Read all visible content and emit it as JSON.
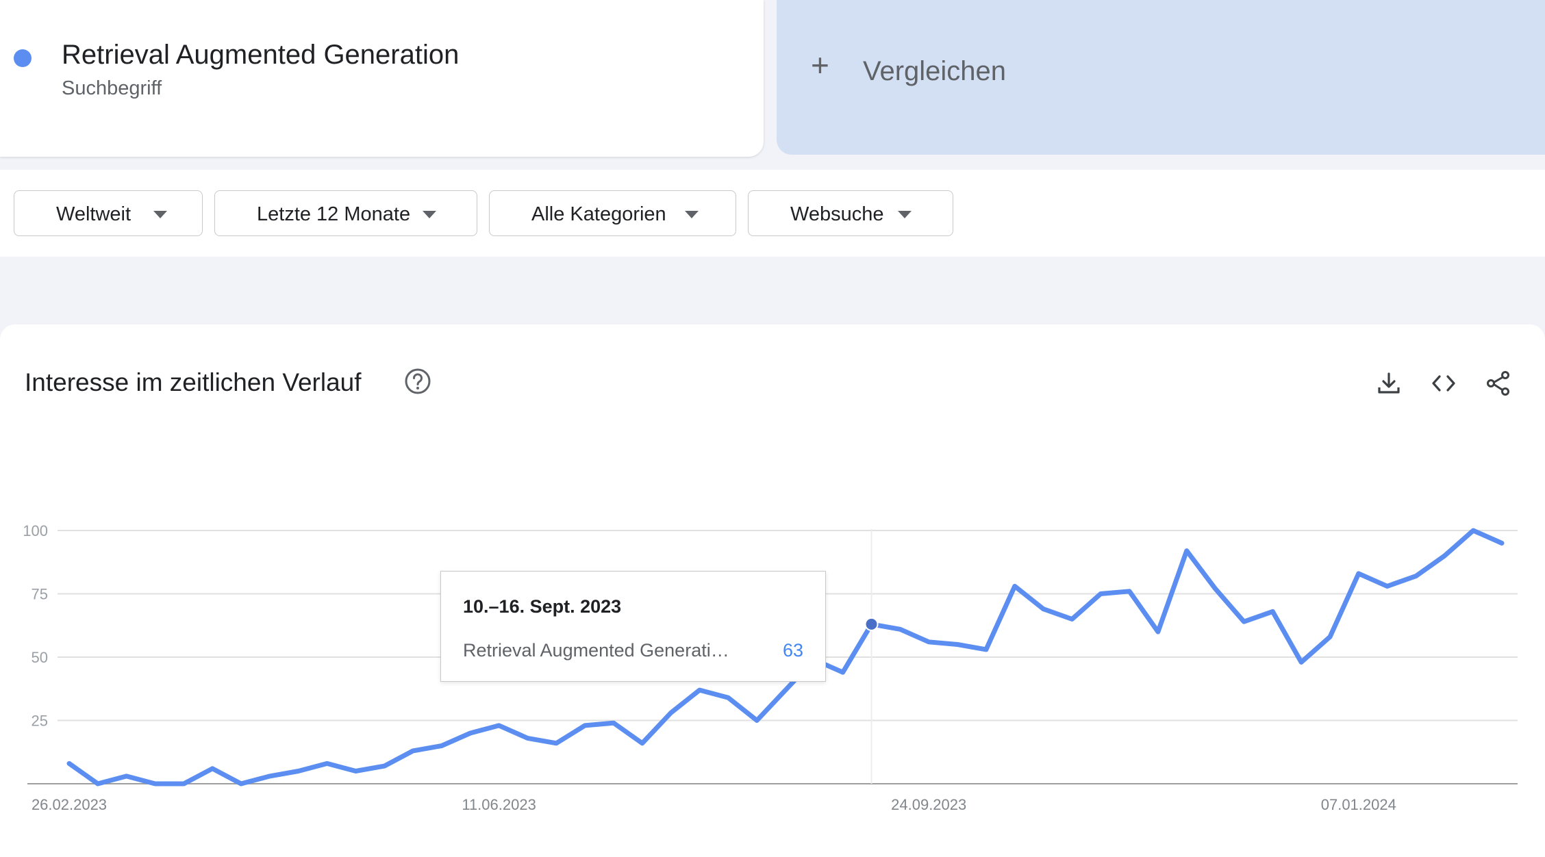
{
  "term": {
    "name": "Retrieval Augmented Generation",
    "type": "Suchbegriff",
    "color": "#5b8ef0"
  },
  "compare": {
    "label": "Vergleichen",
    "icon": "plus-icon"
  },
  "filters": [
    {
      "label": "Weltweit",
      "icon": "caret-down-icon"
    },
    {
      "label": "Letzte 12 Monate",
      "icon": "caret-down-icon"
    },
    {
      "label": "Alle Kategorien",
      "icon": "caret-down-icon"
    },
    {
      "label": "Websuche",
      "icon": "caret-down-icon"
    }
  ],
  "chart_section": {
    "title": "Interesse im zeitlichen Verlauf",
    "help_icon": "help-circle-icon",
    "tools": [
      "download-icon",
      "embed-code-icon",
      "share-icon"
    ]
  },
  "tooltip": {
    "date": "10.–16. Sept. 2023",
    "term": "Retrieval Augmented Generati…",
    "value": "63"
  },
  "chart_data": {
    "type": "line",
    "title": "",
    "xlabel": "",
    "ylabel": "",
    "ylim": [
      0,
      100
    ],
    "yticks": [
      25,
      50,
      75,
      100
    ],
    "x_tick_labels": [
      {
        "label": "26.02.2023",
        "index": 0
      },
      {
        "label": "11.06.2023",
        "index": 15
      },
      {
        "label": "24.09.2023",
        "index": 30
      },
      {
        "label": "07.01.2024",
        "index": 45
      }
    ],
    "grid": true,
    "highlight_index": 28,
    "series": [
      {
        "color": "#5b8ef0",
        "values": [
          8,
          0,
          3,
          0,
          0,
          6,
          0,
          3,
          5,
          8,
          5,
          7,
          13,
          15,
          20,
          23,
          18,
          16,
          23,
          24,
          16,
          28,
          37,
          34,
          25,
          37,
          49,
          44,
          63,
          61,
          56,
          55,
          53,
          78,
          69,
          65,
          75,
          76,
          60,
          92,
          77,
          64,
          68,
          48,
          58,
          83,
          78,
          82,
          90,
          100,
          95
        ]
      }
    ]
  }
}
